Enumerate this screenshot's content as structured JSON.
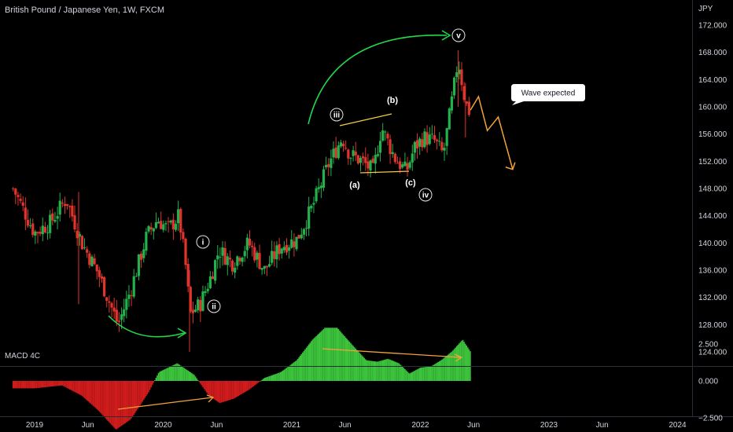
{
  "header": {
    "symbol_title": "British Pound / Japanese Yen, 1W, FXCM",
    "currency": "JPY",
    "indicator_label": "MACD 4C"
  },
  "colors": {
    "background": "#000000",
    "up": "#26a69a",
    "up_candle": "#22b14c",
    "down_candle": "#e0342c",
    "hist_pos": "#3cc43c",
    "hist_neg": "#d01c1c",
    "arrow_green": "#22d84a",
    "orange": "#f4a23a",
    "yellow": "#f7c948",
    "text": "#d1d4dc",
    "axis_line": "#2a2e39"
  },
  "chart_data": [
    {
      "type": "candlestick",
      "title": "British Pound / Japanese Yen, 1W, FXCM",
      "y_unit": "JPY",
      "x_ticks": [
        "2019",
        "Jun",
        "2020",
        "Jun",
        "2021",
        "Jun",
        "2022",
        "Jun",
        "2023",
        "Jun",
        "2024"
      ],
      "y_ticks": [
        "172.000",
        "168.000",
        "164.000",
        "160.000",
        "156.000",
        "152.000",
        "148.000",
        "144.000",
        "140.000",
        "136.000",
        "132.000",
        "128.000",
        "124.000"
      ],
      "ylim": [
        121.5,
        174.5
      ],
      "price_path": {
        "dates": [
          "2018-11-01",
          "2019-01-01",
          "2019-02-15",
          "2019-04-01",
          "2019-05-15",
          "2019-07-01",
          "2019-08-26",
          "2019-09-30",
          "2019-11-15",
          "2019-12-16",
          "2020-01-15",
          "2020-02-15",
          "2020-03-09",
          "2020-03-16",
          "2020-04-15",
          "2020-05-15",
          "2020-06-08",
          "2020-07-15",
          "2020-08-31",
          "2020-10-15",
          "2020-11-30",
          "2021-01-15",
          "2021-02-26",
          "2021-04-15",
          "2021-05-24",
          "2021-06-15",
          "2021-07-20",
          "2021-08-20",
          "2021-09-13",
          "2021-10-20",
          "2021-11-22",
          "2021-12-15",
          "2022-01-10",
          "2022-02-10",
          "2022-03-07",
          "2022-04-04",
          "2022-04-18",
          "2022-05-09",
          "2022-05-23"
        ],
        "closes": [
          148.0,
          141.5,
          143.0,
          146.5,
          140.0,
          135.5,
          128.0,
          133.0,
          141.0,
          143.5,
          142.0,
          144.0,
          135.0,
          129.5,
          131.0,
          135.0,
          139.0,
          137.0,
          140.0,
          136.0,
          139.5,
          140.5,
          145.0,
          151.5,
          155.5,
          153.0,
          152.0,
          150.5,
          157.0,
          152.5,
          150.5,
          154.0,
          155.5,
          155.0,
          153.0,
          162.0,
          167.0,
          160.5,
          159.0
        ]
      },
      "annotations": {
        "wave_labels": [
          "i",
          "ii",
          "iii",
          "iv",
          "v"
        ],
        "abc_labels": [
          "(a)",
          "(b)",
          "(c)"
        ],
        "callout": "Wave expected",
        "projection": {
          "dates": [
            "2022-05-23",
            "2022-06-15",
            "2022-07-10",
            "2022-08-10",
            "2022-09-20"
          ],
          "values": [
            159.5,
            161.5,
            156.5,
            158.5,
            150.8
          ]
        }
      }
    },
    {
      "type": "bar",
      "title": "MACD 4C",
      "y_ticks": [
        "2.500",
        "0.000",
        "−2.500"
      ],
      "ylim": [
        -4.2,
        4.2
      ],
      "macd_path": {
        "dates": [
          "2018-11-01",
          "2019-01-01",
          "2019-02-10",
          "2019-03-20",
          "2019-05-15",
          "2019-07-01",
          "2019-08-20",
          "2019-10-01",
          "2019-11-20",
          "2019-12-20",
          "2020-02-10",
          "2020-03-30",
          "2020-05-10",
          "2020-06-10",
          "2020-07-20",
          "2020-09-01",
          "2020-10-15",
          "2020-12-01",
          "2021-01-15",
          "2021-03-01",
          "2021-04-05",
          "2021-05-10",
          "2021-06-01",
          "2021-07-01",
          "2021-08-01",
          "2021-09-01",
          "2021-10-01",
          "2021-11-01",
          "2021-12-01",
          "2022-01-01",
          "2022-02-01",
          "2022-03-01",
          "2022-04-01",
          "2022-05-01",
          "2022-05-23"
        ],
        "values": [
          -0.5,
          -0.5,
          -0.4,
          -0.3,
          -1.0,
          -2.0,
          -3.3,
          -2.6,
          -0.8,
          0.6,
          1.2,
          0.4,
          -1.0,
          -1.5,
          -1.2,
          -0.6,
          0.2,
          0.6,
          1.4,
          2.8,
          3.6,
          3.6,
          3.0,
          2.2,
          1.4,
          1.3,
          1.5,
          1.2,
          0.5,
          0.9,
          1.0,
          1.4,
          2.0,
          2.8,
          2.0
        ]
      }
    }
  ]
}
